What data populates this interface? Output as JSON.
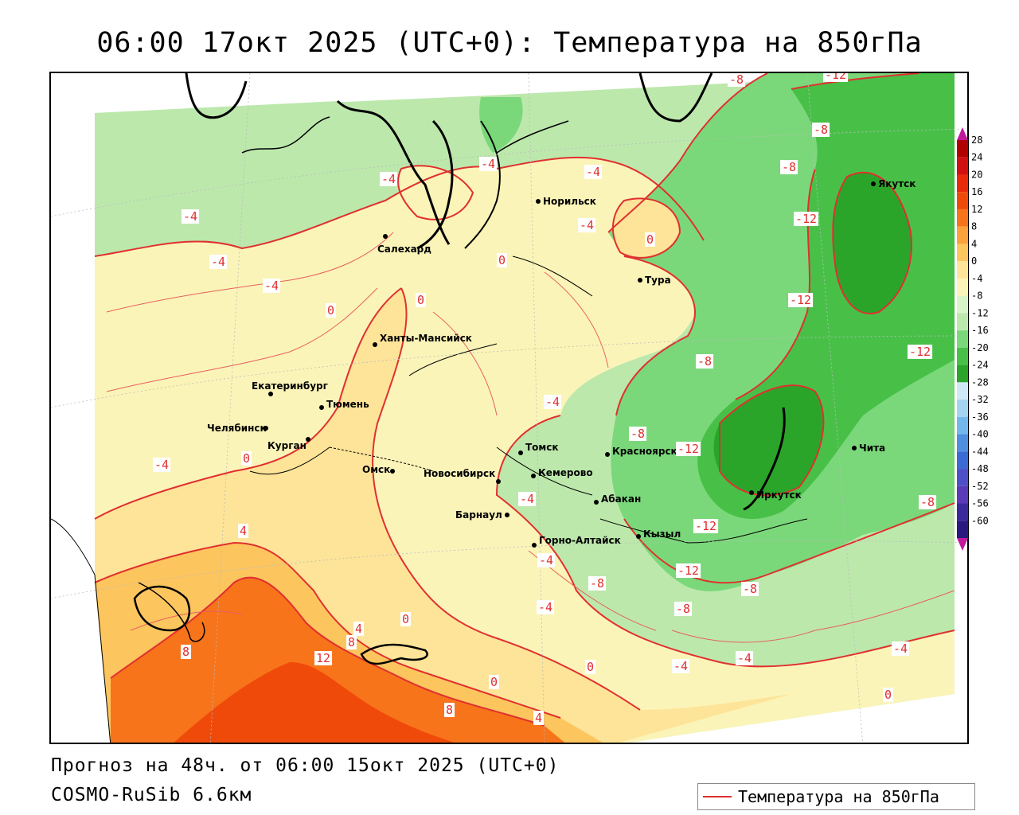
{
  "title": "06:00 17окт 2025 (UTC+0): Температура на 850гПа",
  "footer": {
    "forecast": "Прогноз на 48ч. от 06:00 15окт 2025 (UTC+0)",
    "model": "COSMO-RuSib 6.6км"
  },
  "legend": {
    "label": "Температура на 850гПа",
    "color": "#e03030"
  },
  "colorbar": {
    "ticks": [
      "28",
      "24",
      "20",
      "16",
      "12",
      "8",
      "4",
      "0",
      "-4",
      "-8",
      "-12",
      "-16",
      "-20",
      "-24",
      "-28",
      "-32",
      "-36",
      "-40",
      "-44",
      "-48",
      "-52",
      "-56",
      "-60"
    ],
    "colors": [
      "#b00000",
      "#d01010",
      "#e82a0a",
      "#f04a0a",
      "#f7741a",
      "#fba23a",
      "#fcc55e",
      "#fde498",
      "#fbf4b8",
      "#d8f4c8",
      "#bce8ac",
      "#7ad87a",
      "#48c048",
      "#2aa52a",
      "#cfe9f6",
      "#a3d5f2",
      "#72b8ec",
      "#4f8fe0",
      "#3b6ad4",
      "#4f4fc8",
      "#5a3ab8",
      "#3a2a9c",
      "#2a1a80"
    ],
    "top_color": "#c01a9a",
    "bottom_color": "#c01a9a"
  },
  "colors": {
    "water": "#ffffff",
    "isotherm": "#e03030",
    "label_text": "#e03030",
    "land_outline": "#000000"
  },
  "cities": [
    {
      "name": "Якутск"
    },
    {
      "name": "Норильск"
    },
    {
      "name": "Салехард"
    },
    {
      "name": "Тура"
    },
    {
      "name": "Ханты-Мансийск"
    },
    {
      "name": "Екатеринбург"
    },
    {
      "name": "Тюмень"
    },
    {
      "name": "Челябинск"
    },
    {
      "name": "Курган"
    },
    {
      "name": "Омск"
    },
    {
      "name": "Новосибирск"
    },
    {
      "name": "Томск"
    },
    {
      "name": "Кемерово"
    },
    {
      "name": "Красноярск"
    },
    {
      "name": "Барнаул"
    },
    {
      "name": "Абакан"
    },
    {
      "name": "Горно-Алтайск"
    },
    {
      "name": "Кызыл"
    },
    {
      "name": "Иркутск"
    },
    {
      "name": "Чита"
    }
  ],
  "contour_labels": [
    "-8",
    "-12",
    "-8",
    "-8",
    "-12",
    "-4",
    "-4",
    "-4",
    "-4",
    "-4",
    "0",
    "0",
    "-4",
    "0",
    "-4",
    "0",
    "-12",
    "-12",
    "-8",
    "-4",
    "-8",
    "-12",
    "-8",
    "-4",
    "-4",
    "-4",
    "-4",
    "-12",
    "-8",
    "-12",
    "-8",
    "-8",
    "4",
    "0",
    "4",
    "8",
    "8",
    "12",
    "8",
    "4",
    "0",
    "0",
    "-4",
    "-4",
    "0",
    "-4",
    "0"
  ]
}
